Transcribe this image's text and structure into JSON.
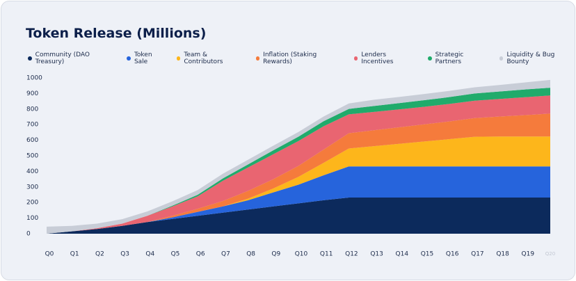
{
  "chart_data": {
    "type": "stacked_area",
    "title": "Token Release (Millions)",
    "categories": [
      "Q0",
      "Q1",
      "Q2",
      "Q3",
      "Q4",
      "Q5",
      "Q6",
      "Q7",
      "Q8",
      "Q9",
      "Q10",
      "Q11",
      "Q12",
      "Q13",
      "Q14",
      "Q15",
      "Q16",
      "Q17",
      "Q18",
      "Q19",
      "Q20"
    ],
    "ylim": [
      0,
      1000
    ],
    "yticks": [
      0,
      100,
      200,
      300,
      400,
      500,
      600,
      700,
      800,
      900,
      1000
    ],
    "series": [
      {
        "name": "Community (DAO Treasury)",
        "color": "#0c2a5c",
        "values": [
          0,
          15,
          30,
          50,
          75,
          95,
          115,
          135,
          155,
          175,
          195,
          215,
          232,
          232,
          232,
          232,
          232,
          232,
          232,
          232,
          232
        ]
      },
      {
        "name": "Token Sale",
        "color": "#2664dc",
        "values": [
          0,
          0,
          0,
          0,
          0,
          10,
          25,
          40,
          60,
          90,
          120,
          160,
          200,
          200,
          200,
          200,
          200,
          200,
          200,
          200,
          200
        ]
      },
      {
        "name": "Team & Contributors",
        "color": "#fdb61b",
        "values": [
          0,
          0,
          0,
          0,
          0,
          0,
          0,
          0,
          10,
          25,
          50,
          80,
          115,
          130,
          145,
          160,
          175,
          190,
          192,
          192,
          192
        ]
      },
      {
        "name": "Inflation (Staking Rewards)",
        "color": "#f57b3c",
        "values": [
          0,
          0,
          0,
          0,
          0,
          10,
          20,
          35,
          50,
          60,
          70,
          85,
          98,
          102,
          106,
          110,
          114,
          120,
          128,
          137,
          147
        ]
      },
      {
        "name": "Lenders Incentives",
        "color": "#e96571",
        "values": [
          0,
          0,
          5,
          15,
          40,
          60,
          80,
          130,
          150,
          160,
          160,
          150,
          121,
          118,
          115,
          113,
          112,
          112,
          113,
          115,
          116
        ]
      },
      {
        "name": "Strategic Partners",
        "color": "#20ab6b",
        "values": [
          0,
          0,
          0,
          0,
          0,
          5,
          10,
          15,
          20,
          25,
          28,
          32,
          35,
          38,
          40,
          42,
          44,
          46,
          48,
          50,
          50
        ]
      },
      {
        "name": "Liquidity & Bug Bounty",
        "color": "#c8cdd7",
        "values": [
          45,
          35,
          30,
          28,
          28,
          28,
          30,
          30,
          30,
          30,
          30,
          30,
          35,
          40,
          40,
          40,
          40,
          40,
          42,
          45,
          50
        ]
      }
    ]
  }
}
